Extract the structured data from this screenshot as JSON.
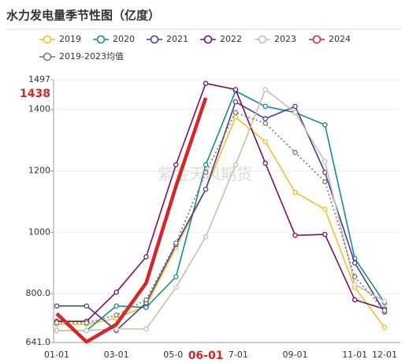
{
  "chart_data": {
    "type": "line",
    "title": "水力发电量季节性图（亿度）",
    "watermark": "紫金天风期货",
    "categories": [
      "01-01",
      null,
      "03-01",
      null,
      "05-01",
      "06-01",
      "07-01",
      null,
      "09-01",
      null,
      "11-01",
      "12-01"
    ],
    "highlight_category": 5,
    "y_highlight": 1438,
    "ylim": [
      641,
      1497
    ],
    "yticks": [
      {
        "value": 641,
        "label": "641.0"
      },
      {
        "value": 800,
        "label": "800.0"
      },
      1000,
      1200,
      1400,
      1497
    ],
    "grid": true,
    "series": [
      {
        "name": "2019",
        "color": "#f2c02a",
        "values": [
          700,
          700,
          720,
          760,
          950,
          1140,
          1375,
          1295,
          1130,
          1075,
          820,
          690
        ]
      },
      {
        "name": "2020",
        "color": "#1a8a8a",
        "values": [
          680,
          680,
          760,
          755,
          855,
          1220,
          1460,
          1410,
          1390,
          1350,
          915,
          770
        ]
      },
      {
        "name": "2021",
        "color": "#4b3c96",
        "values": [
          760,
          760,
          680,
          770,
          960,
          1140,
          1425,
          1370,
          1410,
          1195,
          900,
          740
        ]
      },
      {
        "name": "2022",
        "color": "#7a1060",
        "values": [
          710,
          710,
          805,
          920,
          1220,
          1485,
          1465,
          1225,
          990,
          993,
          780,
          750
        ]
      },
      {
        "name": "2023",
        "color": "#c9c0aa",
        "values": [
          680,
          680,
          685,
          685,
          820,
          985,
          1220,
          1465,
          1390,
          1230,
          830,
          775
        ]
      },
      {
        "name": "2024",
        "color": "#d62728",
        "values": [
          735,
          643,
          700,
          835,
          1150,
          1438,
          null,
          null,
          null,
          null,
          null,
          null
        ]
      },
      {
        "name": "2019-2023均值",
        "color": "#777777",
        "dash": "2,3",
        "values": [
          705,
          705,
          730,
          780,
          965,
          1195,
          1390,
          1355,
          1260,
          1165,
          855,
          745
        ]
      }
    ]
  }
}
